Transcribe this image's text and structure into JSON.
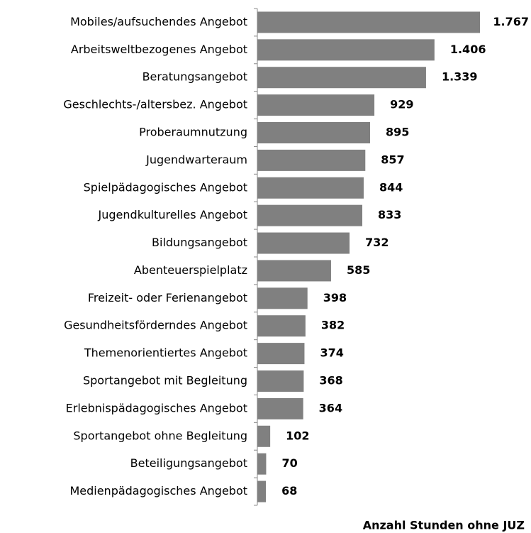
{
  "chart_data": {
    "type": "bar",
    "orientation": "horizontal",
    "categories": [
      "Mobiles/aufsuchendes Angebot",
      "Arbeitsweltbezogenes Angebot",
      "Beratungsangebot",
      "Geschlechts-/altersbez. Angebot",
      "Proberaumnutzung",
      "Jugendwarteraum",
      "Spielpädagogisches Angebot",
      "Jugendkulturelles Angebot",
      "Bildungsangebot",
      "Abenteuerspielplatz",
      "Freizeit- oder Ferienangebot",
      "Gesundheitsförderndes Angebot",
      "Themenorientiertes Angebot",
      "Sportangebot mit Begleitung",
      "Erlebnispädagogisches Angebot",
      "Sportangebot ohne Begleitung",
      "Beteiligungsangebot",
      "Medienpädagogisches Angebot"
    ],
    "values": [
      1767,
      1406,
      1339,
      929,
      895,
      857,
      844,
      833,
      732,
      585,
      398,
      382,
      374,
      368,
      364,
      102,
      70,
      68
    ],
    "value_labels": [
      "1.767",
      "1.406",
      "1.339",
      "929",
      "895",
      "857",
      "844",
      "833",
      "732",
      "585",
      "398",
      "382",
      "374",
      "368",
      "364",
      "102",
      "70",
      "68"
    ],
    "color": "#808080",
    "xlabel": "Anzahl Stunden ohne JUZ"
  }
}
